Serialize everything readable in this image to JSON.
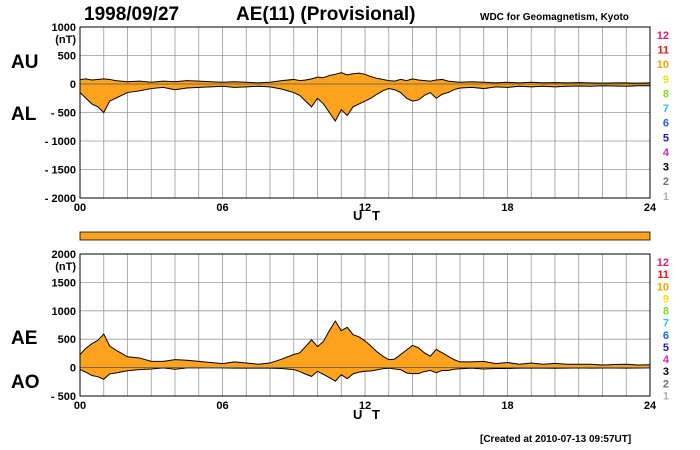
{
  "header": {
    "date": "1998/09/27",
    "index_title": "AE(11) (Provisional)",
    "source": "WDC for Geomagnetism, Kyoto"
  },
  "footer": {
    "created": "[Created at 2010-07-13 09:57UT]"
  },
  "colors": {
    "fill": "#FFA31F",
    "trace": "#000000",
    "grid": "#9a9a9a",
    "bar": "#FFA31F"
  },
  "legend_stations": [
    {
      "label": "12",
      "color": "#E0206A"
    },
    {
      "label": "11",
      "color": "#E02020"
    },
    {
      "label": "10",
      "color": "#F2A400"
    },
    {
      "label": "9",
      "color": "#E6E600"
    },
    {
      "label": "8",
      "color": "#80E020"
    },
    {
      "label": "7",
      "color": "#20C8E0"
    },
    {
      "label": "6",
      "color": "#1E64E0"
    },
    {
      "label": "5",
      "color": "#2020B0"
    },
    {
      "label": "4",
      "color": "#D020D0"
    },
    {
      "label": "3",
      "color": "#000000"
    },
    {
      "label": "2",
      "color": "#707070"
    },
    {
      "label": "1",
      "color": "#B0B0B0"
    }
  ],
  "chart_data": [
    {
      "type": "area",
      "panel": "AU/AL",
      "upper_label": "AU",
      "lower_label": "AL",
      "unit": "(nT)",
      "xlabel": "U T",
      "x_ticks": [
        "00",
        "06",
        "12",
        "18",
        "24"
      ],
      "xlim": [
        0,
        24
      ],
      "y_ticks": [
        "1000",
        "500",
        "0",
        "- 500",
        "- 1000",
        "- 1500",
        "- 2000"
      ],
      "ylim": [
        -2000,
        1000
      ],
      "x_hours": [
        0,
        0.25,
        0.5,
        0.75,
        1,
        1.25,
        1.5,
        2,
        2.5,
        3,
        3.5,
        4,
        4.5,
        5,
        5.5,
        6,
        6.5,
        7,
        7.5,
        8,
        8.5,
        9,
        9.25,
        9.5,
        9.75,
        10,
        10.25,
        10.5,
        10.75,
        11,
        11.25,
        11.5,
        11.75,
        12,
        12.25,
        12.5,
        12.75,
        13,
        13.25,
        13.5,
        13.75,
        14,
        14.25,
        14.5,
        14.75,
        15,
        15.25,
        15.5,
        15.75,
        16,
        16.5,
        17,
        17.5,
        18,
        18.5,
        19,
        19.5,
        20,
        20.5,
        21,
        21.5,
        22,
        22.5,
        23,
        23.5,
        24
      ],
      "series": [
        {
          "name": "AU",
          "values": [
            80,
            90,
            70,
            80,
            90,
            80,
            60,
            40,
            50,
            30,
            50,
            40,
            60,
            50,
            40,
            30,
            40,
            30,
            20,
            30,
            60,
            80,
            60,
            70,
            90,
            120,
            110,
            150,
            170,
            200,
            160,
            180,
            190,
            170,
            130,
            100,
            80,
            60,
            50,
            80,
            60,
            90,
            70,
            60,
            50,
            70,
            80,
            50,
            40,
            30,
            40,
            30,
            20,
            30,
            20,
            30,
            20,
            25,
            20,
            25,
            20,
            15,
            20,
            20,
            15,
            20
          ]
        },
        {
          "name": "AL",
          "values": [
            -150,
            -250,
            -350,
            -400,
            -500,
            -300,
            -250,
            -150,
            -120,
            -80,
            -60,
            -100,
            -70,
            -60,
            -50,
            -40,
            -60,
            -50,
            -40,
            -50,
            -90,
            -150,
            -200,
            -300,
            -400,
            -250,
            -350,
            -500,
            -650,
            -450,
            -550,
            -400,
            -350,
            -300,
            -250,
            -180,
            -120,
            -80,
            -100,
            -150,
            -250,
            -300,
            -280,
            -200,
            -150,
            -250,
            -180,
            -150,
            -100,
            -70,
            -60,
            -80,
            -50,
            -60,
            -40,
            -50,
            -40,
            -50,
            -40,
            -35,
            -40,
            -30,
            -35,
            -40,
            -30,
            -30
          ]
        }
      ]
    },
    {
      "type": "area",
      "panel": "AE/AO",
      "upper_label": "AE",
      "lower_label": "AO",
      "unit": "(nT)",
      "xlabel": "U T",
      "x_ticks": [
        "00",
        "06",
        "12",
        "18",
        "24"
      ],
      "xlim": [
        0,
        24
      ],
      "y_ticks": [
        "2000",
        "1500",
        "1000",
        "500",
        "0",
        "- 500"
      ],
      "ylim": [
        -500,
        2000
      ],
      "x_hours": [
        0,
        0.25,
        0.5,
        0.75,
        1,
        1.25,
        1.5,
        2,
        2.5,
        3,
        3.5,
        4,
        4.5,
        5,
        5.5,
        6,
        6.5,
        7,
        7.5,
        8,
        8.5,
        9,
        9.25,
        9.5,
        9.75,
        10,
        10.25,
        10.5,
        10.75,
        11,
        11.25,
        11.5,
        11.75,
        12,
        12.25,
        12.5,
        12.75,
        13,
        13.25,
        13.5,
        13.75,
        14,
        14.25,
        14.5,
        14.75,
        15,
        15.25,
        15.5,
        15.75,
        16,
        16.5,
        17,
        17.5,
        18,
        18.5,
        19,
        19.5,
        20,
        20.5,
        21,
        21.5,
        22,
        22.5,
        23,
        23.5,
        24
      ],
      "series": [
        {
          "name": "AE",
          "values": [
            230,
            340,
            420,
            480,
            590,
            380,
            310,
            190,
            170,
            110,
            110,
            140,
            130,
            110,
            90,
            70,
            100,
            80,
            60,
            80,
            150,
            230,
            260,
            370,
            490,
            370,
            460,
            650,
            820,
            650,
            710,
            580,
            540,
            470,
            380,
            280,
            200,
            140,
            150,
            230,
            310,
            390,
            350,
            260,
            200,
            320,
            260,
            200,
            140,
            100,
            100,
            110,
            70,
            90,
            60,
            80,
            60,
            75,
            60,
            60,
            60,
            45,
            55,
            60,
            45,
            50
          ]
        },
        {
          "name": "AO",
          "values": [
            -35,
            -80,
            -140,
            -160,
            -205,
            -110,
            -95,
            -55,
            -35,
            -25,
            -5,
            -30,
            -5,
            -5,
            -5,
            -5,
            -10,
            -10,
            -10,
            -10,
            -15,
            -35,
            -70,
            -115,
            -155,
            -65,
            -120,
            -175,
            -240,
            -125,
            -195,
            -110,
            -80,
            -65,
            -60,
            -40,
            -20,
            -10,
            -25,
            -35,
            -95,
            -105,
            -105,
            -70,
            -50,
            -90,
            -50,
            -50,
            -30,
            -20,
            -10,
            -25,
            -15,
            -15,
            -10,
            -10,
            -10,
            -12,
            -10,
            -5,
            -10,
            -7,
            -7,
            -10,
            -7,
            -5
          ]
        }
      ]
    }
  ]
}
